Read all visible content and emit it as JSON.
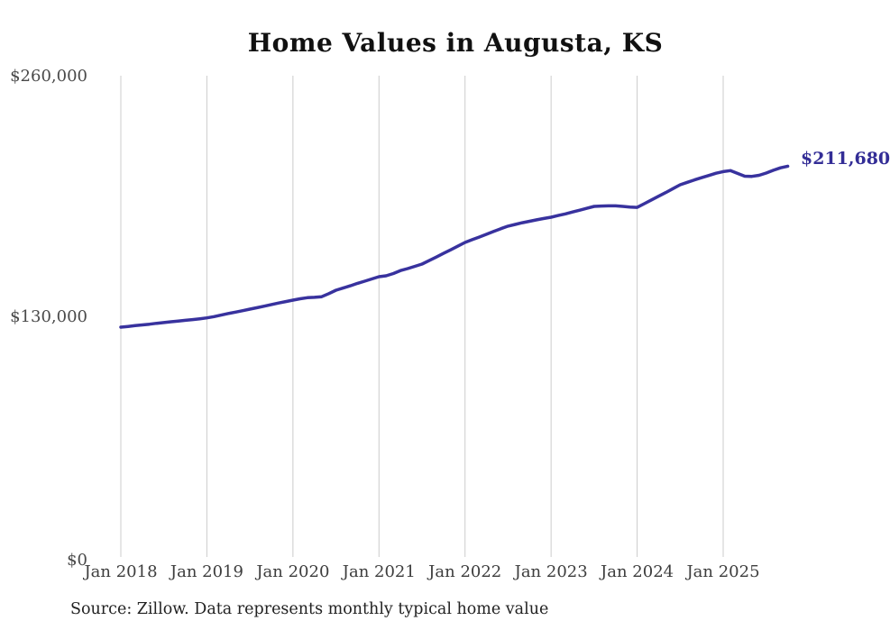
{
  "title": "Home Values in Augusta, KS",
  "source_note": "Source: Zillow. Data represents monthly typical home value",
  "colors": {
    "background": "#ffffff",
    "line": "#38329e",
    "end_label": "#332d96",
    "grid": "#cccccc",
    "title_text": "#111111",
    "tick_text": "#3d3d3d",
    "source_text": "#222222"
  },
  "chart_data": {
    "type": "line",
    "title": "Home Values in Augusta, KS",
    "xlabel": "",
    "ylabel": "",
    "ylim": [
      0,
      260000
    ],
    "grid": "vertical-only",
    "legend": "none",
    "y_tick_labels": [
      "$0",
      "$130,000",
      "$260,000"
    ],
    "y_tick_values": [
      0,
      130000,
      260000
    ],
    "x_tick_labels": [
      "Jan 2018",
      "Jan 2019",
      "Jan 2020",
      "Jan 2021",
      "Jan 2022",
      "Jan 2023",
      "Jan 2024",
      "Jan 2025"
    ],
    "end_label": "$211,680",
    "series": [
      {
        "name": "Typical home value",
        "unit": "USD",
        "months": [
          "2018-01",
          "2018-02",
          "2018-03",
          "2018-04",
          "2018-05",
          "2018-06",
          "2018-07",
          "2018-08",
          "2018-09",
          "2018-10",
          "2018-11",
          "2018-12",
          "2019-01",
          "2019-02",
          "2019-03",
          "2019-04",
          "2019-05",
          "2019-06",
          "2019-07",
          "2019-08",
          "2019-09",
          "2019-10",
          "2019-11",
          "2019-12",
          "2020-01",
          "2020-02",
          "2020-03",
          "2020-04",
          "2020-05",
          "2020-06",
          "2020-07",
          "2020-08",
          "2020-09",
          "2020-10",
          "2020-11",
          "2020-12",
          "2021-01",
          "2021-02",
          "2021-03",
          "2021-04",
          "2021-05",
          "2021-06",
          "2021-07",
          "2021-08",
          "2021-09",
          "2021-10",
          "2021-11",
          "2021-12",
          "2022-01",
          "2022-02",
          "2022-03",
          "2022-04",
          "2022-05",
          "2022-06",
          "2022-07",
          "2022-08",
          "2022-09",
          "2022-10",
          "2022-11",
          "2022-12",
          "2023-01",
          "2023-02",
          "2023-03",
          "2023-04",
          "2023-05",
          "2023-06",
          "2023-07",
          "2023-08",
          "2023-09",
          "2023-10",
          "2023-11",
          "2023-12",
          "2024-01",
          "2024-02",
          "2024-03",
          "2024-04",
          "2024-05",
          "2024-06",
          "2024-07",
          "2024-08",
          "2024-09",
          "2024-10",
          "2024-11",
          "2024-12",
          "2025-01",
          "2025-02",
          "2025-03",
          "2025-04",
          "2025-05",
          "2025-06",
          "2025-07",
          "2025-08",
          "2025-09",
          "2025-10"
        ],
        "values": [
          124900,
          125300,
          125700,
          126100,
          126500,
          127000,
          127400,
          127800,
          128200,
          128600,
          129000,
          129400,
          129900,
          130600,
          131400,
          132300,
          133000,
          133800,
          134600,
          135400,
          136200,
          137100,
          137900,
          138700,
          139500,
          140200,
          140800,
          141000,
          141300,
          143000,
          144800,
          146000,
          147200,
          148500,
          149700,
          150900,
          152100,
          152600,
          153800,
          155400,
          156500,
          157700,
          158900,
          160800,
          162700,
          164700,
          166600,
          168600,
          170600,
          172100,
          173500,
          175000,
          176500,
          178000,
          179400,
          180300,
          181200,
          182000,
          182800,
          183500,
          184200,
          185100,
          186000,
          187000,
          188000,
          189000,
          190000,
          190200,
          190300,
          190300,
          190000,
          189700,
          189500,
          191500,
          193500,
          195500,
          197500,
          199600,
          201700,
          203000,
          204300,
          205500,
          206700,
          207900,
          208800,
          209300,
          207800,
          206300,
          206200,
          206800,
          208000,
          209500,
          210800,
          211680
        ]
      }
    ],
    "last_point": {
      "month": "2025-10",
      "value": 211680,
      "label": "$211,680"
    }
  }
}
